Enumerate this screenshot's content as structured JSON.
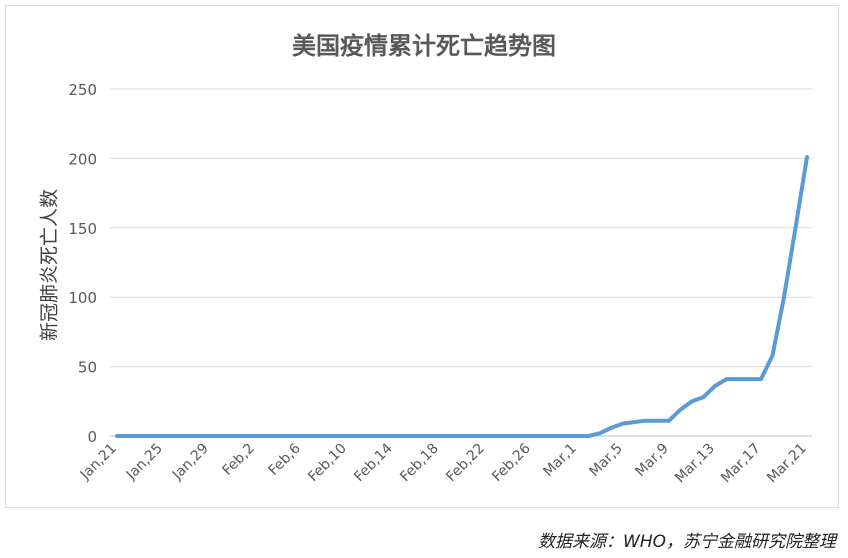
{
  "chart_data": {
    "type": "line",
    "title": "美国疫情累计死亡趋势图",
    "ylabel": "新冠肺炎死亡人数",
    "xlabel": "",
    "ylim": [
      0,
      250
    ],
    "yticks": [
      0,
      50,
      100,
      150,
      200,
      250
    ],
    "grid": true,
    "legend": "none",
    "line_color": "#5b9bd5",
    "x": [
      "Jan,21",
      "Jan,22",
      "Jan,23",
      "Jan,24",
      "Jan,25",
      "Jan,26",
      "Jan,27",
      "Jan,28",
      "Jan,29",
      "Jan,30",
      "Jan,31",
      "Feb,1",
      "Feb,2",
      "Feb,3",
      "Feb,4",
      "Feb,5",
      "Feb,6",
      "Feb,7",
      "Feb,8",
      "Feb,9",
      "Feb,10",
      "Feb,11",
      "Feb,12",
      "Feb,13",
      "Feb,14",
      "Feb,15",
      "Feb,16",
      "Feb,17",
      "Feb,18",
      "Feb,19",
      "Feb,20",
      "Feb,21",
      "Feb,22",
      "Feb,23",
      "Feb,24",
      "Feb,25",
      "Feb,26",
      "Feb,27",
      "Feb,28",
      "Feb,29",
      "Mar,1",
      "Mar,2",
      "Mar,3",
      "Mar,4",
      "Mar,5",
      "Mar,6",
      "Mar,7",
      "Mar,8",
      "Mar,9",
      "Mar,10",
      "Mar,11",
      "Mar,12",
      "Mar,13",
      "Mar,14",
      "Mar,15",
      "Mar,16",
      "Mar,17",
      "Mar,18",
      "Mar,19",
      "Mar,20",
      "Mar,21"
    ],
    "values": [
      0,
      0,
      0,
      0,
      0,
      0,
      0,
      0,
      0,
      0,
      0,
      0,
      0,
      0,
      0,
      0,
      0,
      0,
      0,
      0,
      0,
      0,
      0,
      0,
      0,
      0,
      0,
      0,
      0,
      0,
      0,
      0,
      0,
      0,
      0,
      0,
      0,
      0,
      0,
      0,
      0,
      0,
      2,
      6,
      9,
      10,
      11,
      11,
      11,
      19,
      25,
      28,
      36,
      41,
      41,
      41,
      41,
      58,
      100,
      150,
      201
    ],
    "tick_labels": [
      "Jan,21",
      "Jan,25",
      "Jan,29",
      "Feb,2",
      "Feb,6",
      "Feb,10",
      "Feb,14",
      "Feb,18",
      "Feb,22",
      "Feb,26",
      "Mar,1",
      "Mar,5",
      "Mar,9",
      "Mar,13",
      "Mar,17",
      "Mar,21"
    ]
  },
  "source": "数据来源：WHO，苏宁金融研究院整理"
}
